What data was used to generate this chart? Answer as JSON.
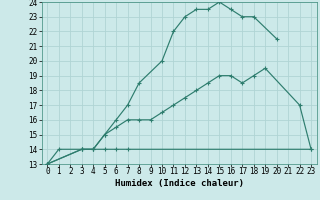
{
  "xlabel": "Humidex (Indice chaleur)",
  "xlim": [
    -0.5,
    23.5
  ],
  "ylim": [
    13,
    24
  ],
  "xticks": [
    0,
    1,
    2,
    3,
    4,
    5,
    6,
    7,
    8,
    9,
    10,
    11,
    12,
    13,
    14,
    15,
    16,
    17,
    18,
    19,
    20,
    21,
    22,
    23
  ],
  "yticks": [
    13,
    14,
    15,
    16,
    17,
    18,
    19,
    20,
    21,
    22,
    23,
    24
  ],
  "bg_color": "#cce9e9",
  "grid_color": "#b0d4d4",
  "line_color": "#2e7d6e",
  "line1_x": [
    0,
    1,
    3,
    4,
    5,
    6,
    7,
    8,
    10,
    11,
    12,
    13,
    14,
    15,
    16,
    17,
    18,
    20
  ],
  "line1_y": [
    13,
    14,
    14,
    14,
    15,
    16,
    17,
    18.5,
    20,
    22,
    23,
    23.5,
    23.5,
    24,
    23.5,
    23,
    23,
    21.5
  ],
  "line2_x": [
    0,
    3,
    4,
    5,
    6,
    7,
    8,
    9,
    10,
    11,
    12,
    13,
    14,
    15,
    16,
    17,
    18,
    19,
    22,
    23
  ],
  "line2_y": [
    13,
    14,
    14,
    15,
    15.5,
    16,
    16,
    16,
    16.5,
    17,
    17.5,
    18,
    18.5,
    19,
    19,
    18.5,
    19,
    19.5,
    17,
    14
  ],
  "line3_x": [
    0,
    3,
    4,
    5,
    6,
    7,
    23
  ],
  "line3_y": [
    13,
    14,
    14,
    14,
    14,
    14,
    14
  ],
  "label_fontsize": 6.5,
  "tick_fontsize": 5.5
}
